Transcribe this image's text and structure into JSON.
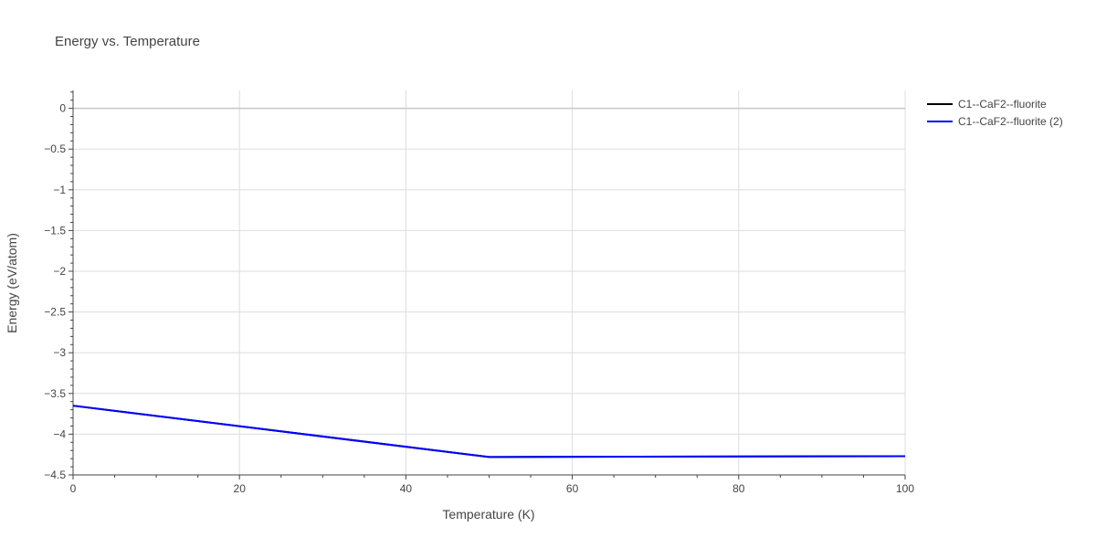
{
  "chart_data": {
    "type": "line",
    "title": "Energy vs. Temperature",
    "xlabel": "Temperature (K)",
    "ylabel": "Energy (eV/atom)",
    "xlim": [
      0,
      100
    ],
    "ylim": [
      -4.5,
      0.22
    ],
    "x_ticks": [
      0,
      20,
      40,
      60,
      80,
      100
    ],
    "x_tick_labels": [
      "0",
      "20",
      "40",
      "60",
      "80",
      "100"
    ],
    "y_ticks": [
      0,
      -0.5,
      -1,
      -1.5,
      -2,
      -2.5,
      -3,
      -3.5,
      -4,
      -4.5
    ],
    "y_tick_labels": [
      "0",
      "−0.5",
      "−1",
      "−1.5",
      "−2",
      "−2.5",
      "−3",
      "−3.5",
      "−4",
      "−4.5"
    ],
    "grid": true,
    "legend_position": "top-right outside",
    "series": [
      {
        "name": "C1--CaF2--fluorite",
        "color": "#000000",
        "x": [
          0,
          50,
          100
        ],
        "y": [
          -3.65,
          -4.28,
          -4.27
        ]
      },
      {
        "name": "C1--CaF2--fluorite (2)",
        "color": "#0000ff",
        "x": [
          0,
          50,
          100
        ],
        "y": [
          -3.65,
          -4.28,
          -4.27
        ]
      }
    ]
  }
}
